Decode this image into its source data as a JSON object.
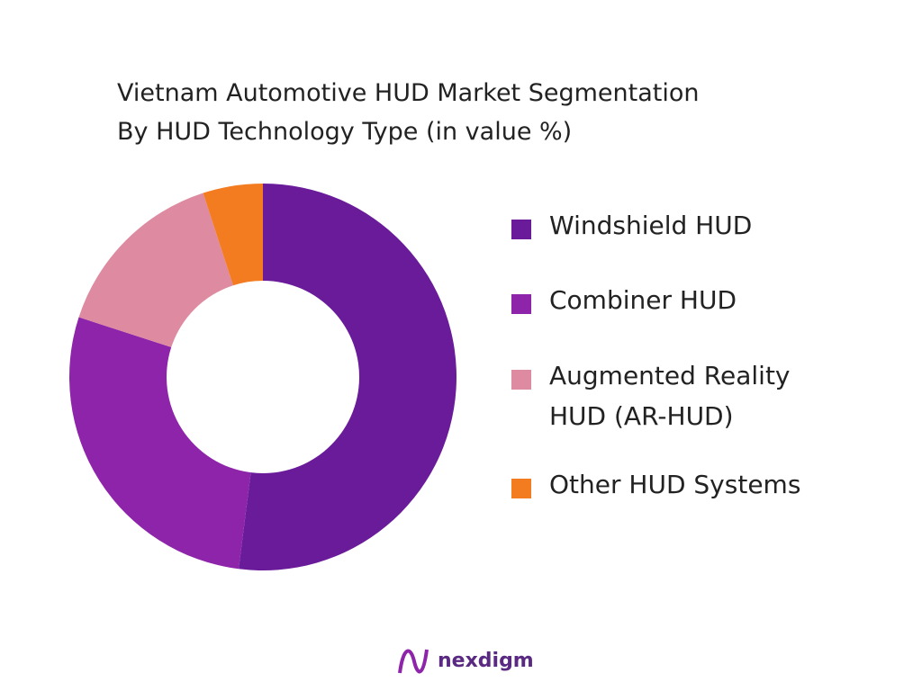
{
  "chart_data": {
    "type": "donut",
    "title": "Vietnam Automotive HUD Market Segmentation",
    "subtitle": "By HUD Technology Type (in value %)",
    "categories": [
      "Windshield HUD",
      "Combiner HUD",
      "Augmented Reality HUD (AR-HUD)",
      "Other HUD Systems"
    ],
    "values": [
      52,
      28,
      15,
      5
    ],
    "colors": [
      "#6a1b9a",
      "#8e24aa",
      "#de8aa0",
      "#f47c20"
    ]
  },
  "footer": {
    "brand": "nexdigm"
  }
}
